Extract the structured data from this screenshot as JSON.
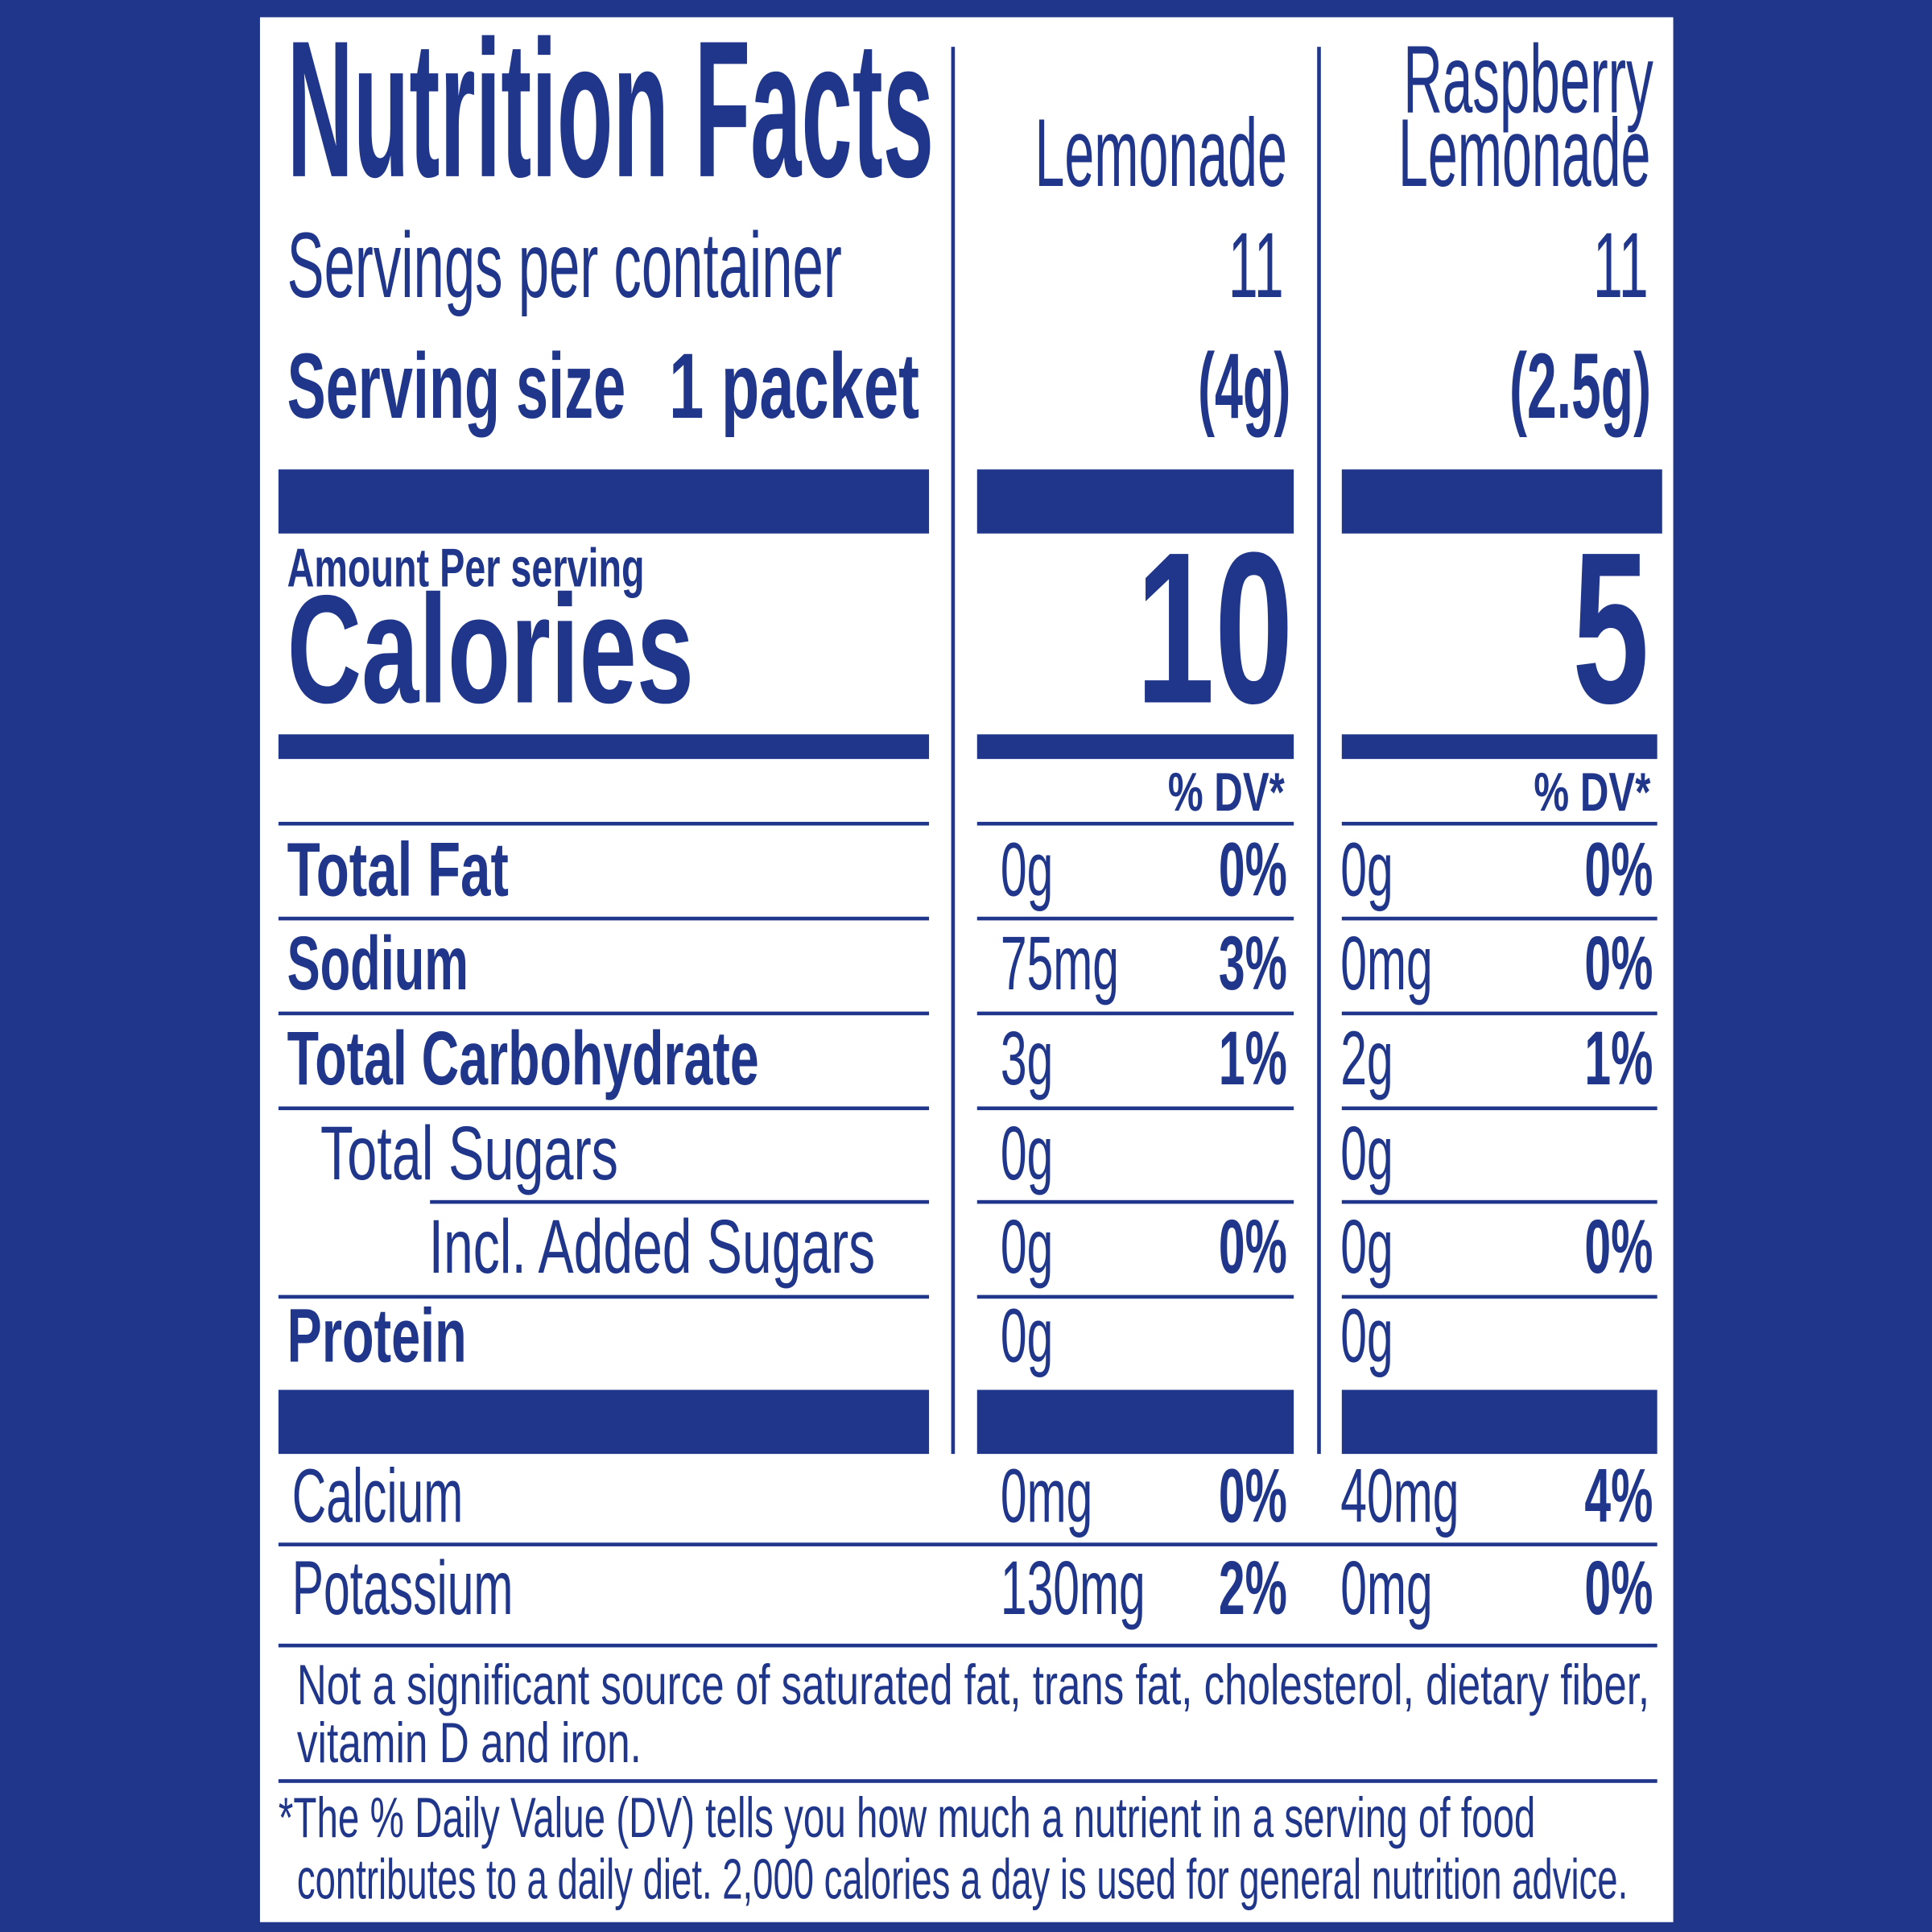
{
  "title": "Nutrition Facts",
  "columns": [
    {
      "name_lines": [
        "Lemonade"
      ],
      "servings_per_container": "11",
      "serving_weight": "(4g)",
      "calories": "10",
      "dv_header": "% DV*",
      "nutrients": [
        [
          "0g",
          "0%"
        ],
        [
          "75mg",
          "3%"
        ],
        [
          "3g",
          "1%"
        ],
        [
          "0g",
          ""
        ],
        [
          "0g",
          "0%"
        ],
        [
          "0g",
          ""
        ]
      ],
      "minerals": [
        [
          "0mg",
          "0%"
        ],
        [
          "130mg",
          "2%"
        ]
      ]
    },
    {
      "name_lines": [
        "Raspberry",
        "Lemonade"
      ],
      "servings_per_container": "11",
      "serving_weight": "(2.5g)",
      "calories": "5",
      "dv_header": "% DV*",
      "nutrients": [
        [
          "0g",
          "0%"
        ],
        [
          "0mg",
          "0%"
        ],
        [
          "2g",
          "1%"
        ],
        [
          "0g",
          ""
        ],
        [
          "0g",
          "0%"
        ],
        [
          "0g",
          ""
        ]
      ],
      "minerals": [
        [
          "40mg",
          "4%"
        ],
        [
          "0mg",
          "0%"
        ]
      ]
    }
  ],
  "servings_label": "Servings per container",
  "serving_size_label": "Serving size",
  "serving_size_value": "1 packet",
  "amount_per_serving": "Amount Per serving",
  "calories_label": "Calories",
  "nutrient_labels": [
    "Total Fat",
    "Sodium",
    "Total Carbohydrate",
    "Total Sugars",
    "Incl. Added Sugars",
    "Protein"
  ],
  "mineral_labels": [
    "Calcium",
    "Potassium"
  ],
  "not_significant": [
    "Not a significant source of saturated fat, trans fat, cholesterol, dietary fiber,",
    "vitamin D and iron."
  ],
  "footnote": [
    "*The % Daily Value (DV) tells you how much a nutrient in a serving of food",
    "contributes to a daily diet. 2,000 calories a day is used for general nutrition advice."
  ],
  "colors": {
    "brand_blue": "#20368a",
    "panel": "#ffffff"
  }
}
